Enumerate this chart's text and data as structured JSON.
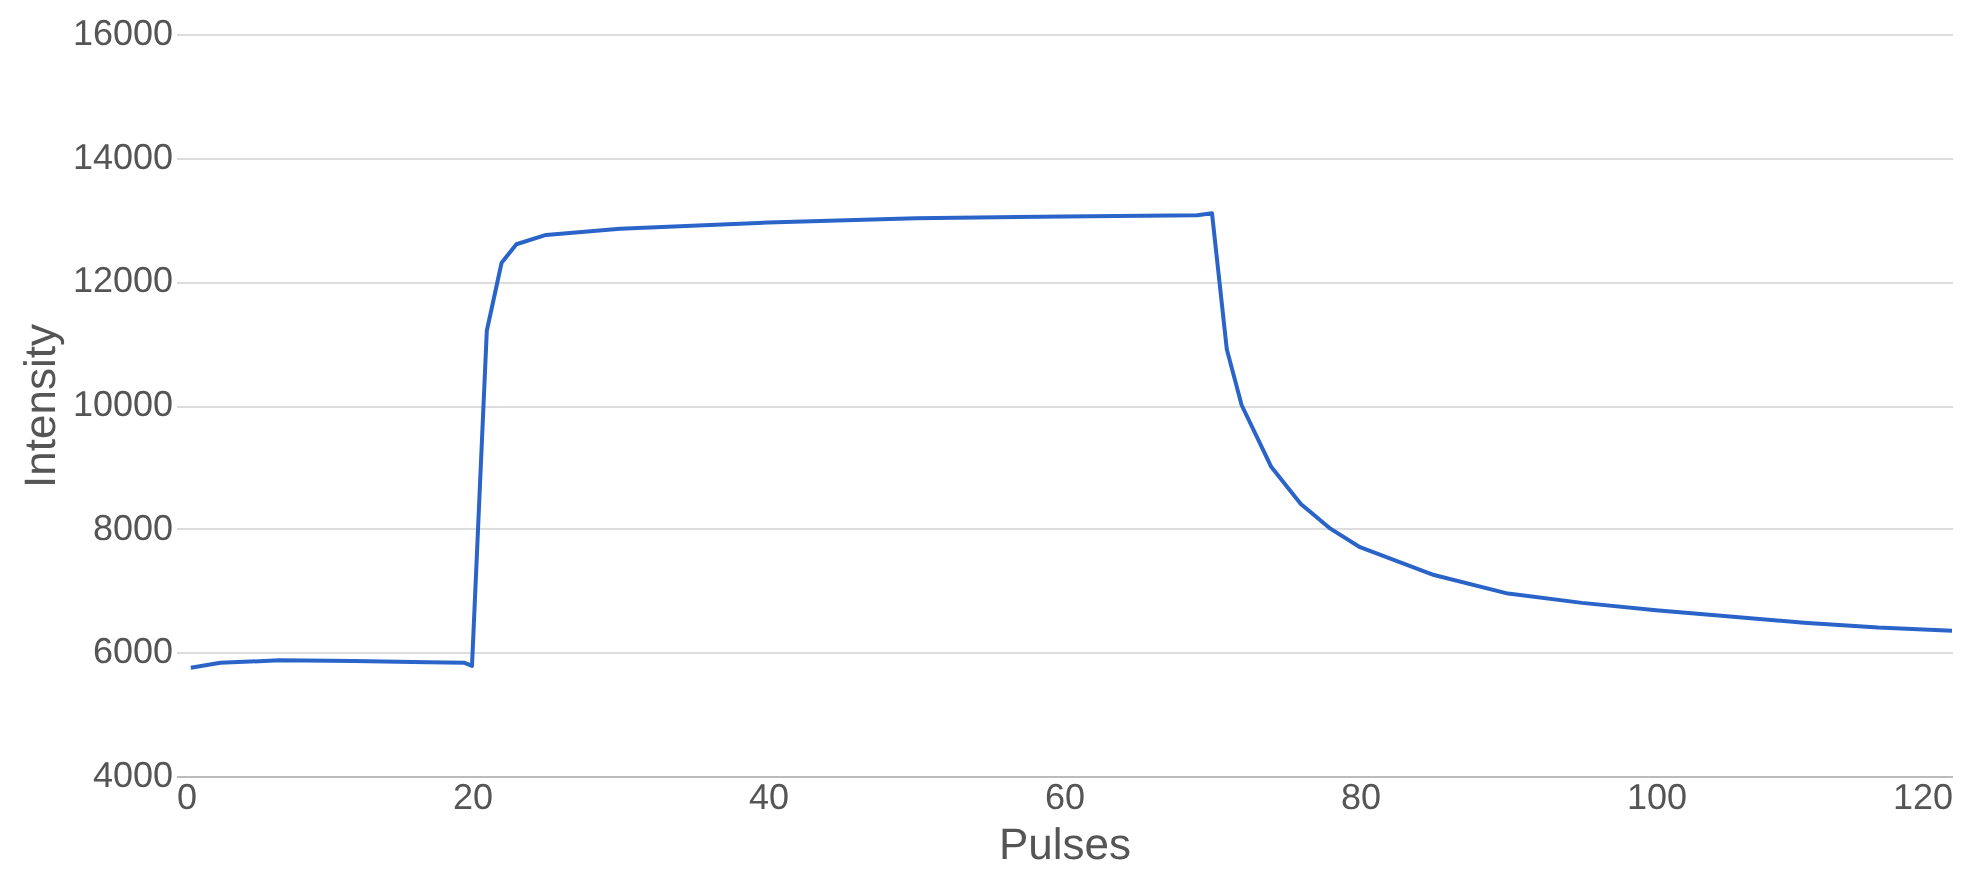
{
  "chart_data": {
    "type": "line",
    "xlabel": "Pulses",
    "ylabel": "Intensity",
    "x": [
      1,
      3,
      7,
      12,
      17,
      19.5,
      20,
      20.5,
      21,
      22,
      23,
      25,
      30,
      40,
      50,
      60,
      69,
      70,
      70.5,
      71,
      72,
      74,
      76,
      78,
      80,
      85,
      90,
      95,
      100,
      105,
      110,
      115,
      120
    ],
    "series": [
      {
        "color": "#2a64c8",
        "values": [
          5750,
          5830,
          5870,
          5860,
          5840,
          5830,
          5780,
          8500,
          11200,
          12300,
          12600,
          12750,
          12850,
          12950,
          13020,
          13050,
          13070,
          13100,
          12000,
          10900,
          10000,
          9000,
          8400,
          8000,
          7700,
          7250,
          6950,
          6800,
          6680,
          6580,
          6480,
          6400,
          6350
        ]
      }
    ],
    "xlim": [
      0,
      120
    ],
    "xticks": [
      0,
      20,
      40,
      60,
      80,
      100,
      120
    ],
    "ylim": [
      4000,
      16000
    ],
    "yticks": [
      4000,
      6000,
      8000,
      10000,
      12000,
      14000,
      16000
    ],
    "grid": "y",
    "legend": false,
    "marker": "none",
    "line_style": "solid"
  }
}
